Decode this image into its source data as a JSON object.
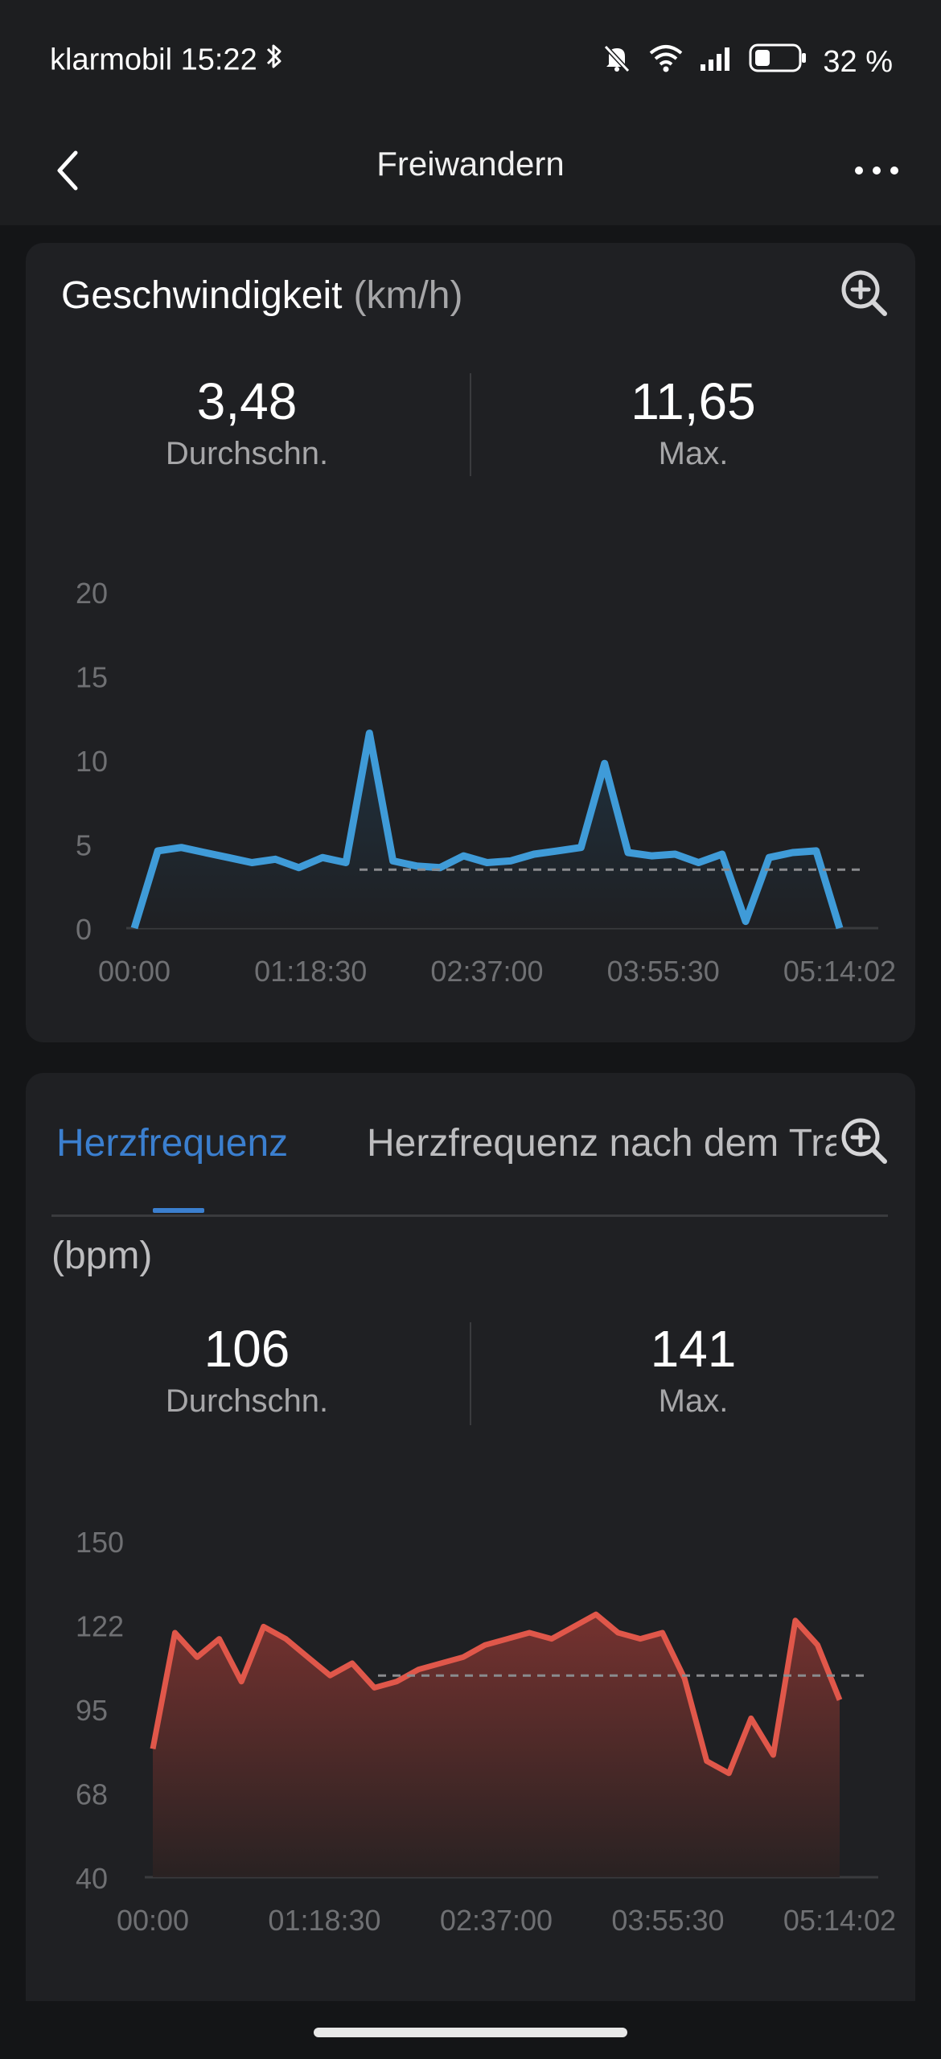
{
  "status_bar": {
    "carrier": "klarmobil",
    "time": "15:22",
    "battery": "32 %",
    "icons": [
      "bluetooth-icon",
      "mute-bell-icon",
      "wifi-icon",
      "signal-icon",
      "battery-icon"
    ]
  },
  "app_bar": {
    "title": "Freiwandern",
    "back_icon": "chevron-left-icon",
    "more_icon": "more-dots-icon"
  },
  "speed_card": {
    "title": "Geschwindigkeit",
    "unit": "(km/h)",
    "zoom_icon": "zoom-in-icon",
    "avg_value": "3,48",
    "avg_label": "Durchschn.",
    "max_value": "11,65",
    "max_label": "Max."
  },
  "heart_card": {
    "tabs": [
      {
        "label": "Herzfrequenz",
        "active": true
      },
      {
        "label": "Herzfrequenz nach dem Training",
        "active": false
      }
    ],
    "zoom_icon": "zoom-in-icon",
    "unit": "(bpm)",
    "avg_value": "106",
    "avg_label": "Durchschn.",
    "max_value": "141",
    "max_label": "Max."
  },
  "chart_data": [
    {
      "type": "area",
      "color": "#3f9bd8",
      "y_ticks": [
        "0",
        "5",
        "10",
        "15",
        "20"
      ],
      "ylim": [
        0,
        20
      ],
      "x_ticks": [
        "00:00",
        "01:18:30",
        "02:37:00",
        "03:55:30",
        "05:14:02"
      ],
      "average_line": 3.48,
      "x": [
        "00:00",
        "00:10",
        "00:20",
        "00:30",
        "00:40",
        "00:50",
        "01:00",
        "01:10",
        "01:18:30",
        "01:30",
        "01:40",
        "01:50",
        "02:00",
        "02:10",
        "02:20",
        "02:30",
        "02:37:00",
        "02:50",
        "03:00",
        "03:10",
        "03:20",
        "03:30",
        "03:40",
        "03:55:30",
        "04:10",
        "04:20",
        "04:30",
        "04:40",
        "04:50",
        "05:00",
        "05:14:02"
      ],
      "values": [
        0,
        4.6,
        4.8,
        4.5,
        4.2,
        3.9,
        4.1,
        3.6,
        4.2,
        3.9,
        11.6,
        4.0,
        3.7,
        3.6,
        4.3,
        3.9,
        4.0,
        4.4,
        4.6,
        4.8,
        9.8,
        4.5,
        4.3,
        4.4,
        3.9,
        4.4,
        0.4,
        4.2,
        4.5,
        4.6,
        0
      ]
    },
    {
      "type": "area",
      "color": "#e0574a",
      "y_ticks": [
        "40",
        "68",
        "95",
        "122",
        "150"
      ],
      "ylim": [
        40,
        150
      ],
      "x_ticks": [
        "00:00",
        "01:18:30",
        "02:37:00",
        "03:55:30",
        "05:14:02"
      ],
      "average_line": 106,
      "x": [
        "00:00",
        "00:10",
        "00:20",
        "00:30",
        "00:40",
        "00:50",
        "01:00",
        "01:10",
        "01:18:30",
        "01:30",
        "01:40",
        "01:50",
        "02:00",
        "02:10",
        "02:20",
        "02:30",
        "02:37:00",
        "02:50",
        "03:00",
        "03:10",
        "03:20",
        "03:30",
        "03:40",
        "03:55:30",
        "04:00",
        "04:10",
        "04:20",
        "04:30",
        "04:40",
        "04:50",
        "05:00",
        "05:14:02"
      ],
      "values": [
        82,
        120,
        112,
        118,
        104,
        122,
        118,
        112,
        106,
        110,
        102,
        104,
        108,
        110,
        112,
        116,
        118,
        120,
        118,
        122,
        126,
        120,
        118,
        120,
        105,
        78,
        74,
        92,
        80,
        124,
        116,
        98
      ]
    }
  ]
}
